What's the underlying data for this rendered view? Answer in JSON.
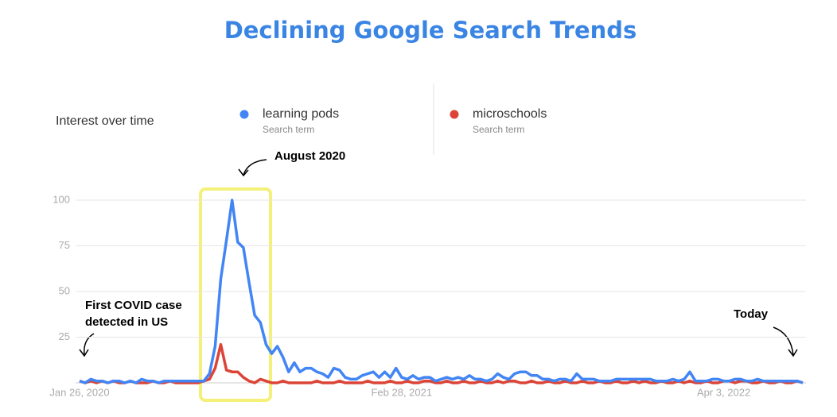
{
  "chart_data": {
    "type": "line",
    "title": "Declining Google Search Trends",
    "panel_title": "Interest over time",
    "categories": [
      "Jan 26, 2020",
      null,
      null,
      null,
      null,
      null,
      null,
      null,
      null,
      null,
      null,
      null,
      null,
      null,
      null,
      null,
      null,
      null,
      null,
      null,
      null,
      null,
      null,
      null,
      null,
      null,
      null,
      null,
      null,
      null,
      null,
      null,
      null,
      null,
      null,
      null,
      null,
      null,
      null,
      null,
      null,
      null,
      null,
      null,
      null,
      null,
      null,
      null,
      null,
      null,
      null,
      null,
      null,
      null,
      null,
      null,
      null,
      "Feb 28, 2021",
      null,
      null,
      null,
      null,
      null,
      null,
      null,
      null,
      null,
      null,
      null,
      null,
      null,
      null,
      null,
      null,
      null,
      null,
      null,
      null,
      null,
      null,
      null,
      null,
      null,
      null,
      null,
      null,
      null,
      null,
      null,
      null,
      null,
      null,
      null,
      null,
      null,
      null,
      null,
      null,
      null,
      null,
      null,
      null,
      null,
      null,
      null,
      null,
      null,
      null,
      null,
      null,
      null,
      null,
      null,
      null,
      "Apr 3, 2022",
      null,
      null,
      null,
      null,
      null,
      null,
      null,
      null,
      null,
      null,
      null,
      null,
      null,
      null
    ],
    "series": [
      {
        "name": "learning pods",
        "subtitle": "Search term",
        "color": "#4285f4",
        "values": [
          1,
          0,
          2,
          1,
          1,
          0,
          1,
          1,
          0,
          1,
          0,
          2,
          1,
          1,
          0,
          1,
          1,
          1,
          1,
          1,
          1,
          1,
          1,
          5,
          20,
          57,
          78,
          100,
          77,
          74,
          55,
          37,
          33,
          21,
          16,
          20,
          14,
          6,
          11,
          6,
          8,
          8,
          6,
          5,
          3,
          8,
          7,
          3,
          2,
          2,
          4,
          5,
          6,
          3,
          6,
          3,
          8,
          3,
          2,
          4,
          2,
          3,
          3,
          1,
          2,
          3,
          2,
          3,
          2,
          4,
          2,
          2,
          1,
          2,
          5,
          3,
          2,
          5,
          6,
          6,
          4,
          4,
          2,
          2,
          1,
          2,
          2,
          1,
          5,
          2,
          2,
          2,
          1,
          1,
          1,
          2,
          2,
          2,
          2,
          2,
          2,
          2,
          1,
          1,
          1,
          2,
          1,
          2,
          6,
          1,
          1,
          1,
          2,
          2,
          1,
          1,
          2,
          2,
          1,
          1,
          2,
          1,
          1,
          1,
          1,
          1,
          1,
          1,
          0
        ]
      },
      {
        "name": "microschools",
        "subtitle": "Search term",
        "color": "#db4437",
        "values": [
          1,
          0,
          1,
          0,
          1,
          0,
          1,
          0,
          0,
          1,
          0,
          0,
          0,
          1,
          0,
          0,
          1,
          0,
          0,
          0,
          0,
          0,
          1,
          2,
          8,
          21,
          7,
          6,
          6,
          3,
          1,
          0,
          2,
          1,
          0,
          0,
          1,
          0,
          0,
          0,
          0,
          0,
          1,
          0,
          0,
          0,
          1,
          0,
          0,
          0,
          0,
          1,
          0,
          0,
          0,
          1,
          0,
          0,
          1,
          0,
          0,
          1,
          1,
          0,
          0,
          1,
          0,
          0,
          1,
          0,
          0,
          1,
          0,
          0,
          1,
          0,
          1,
          1,
          0,
          0,
          1,
          0,
          0,
          1,
          0,
          0,
          1,
          0,
          0,
          1,
          0,
          0,
          1,
          0,
          0,
          1,
          0,
          0,
          1,
          0,
          1,
          0,
          0,
          1,
          0,
          0,
          1,
          0,
          1,
          0,
          0,
          1,
          0,
          0,
          1,
          1,
          0,
          1,
          1,
          0,
          0,
          1,
          0,
          0,
          1,
          0,
          0,
          1,
          0
        ]
      }
    ],
    "ylim": [
      0,
      100
    ],
    "yticks": [
      25,
      50,
      75,
      100
    ],
    "grid": true,
    "annotations": [
      [
        "August 2020"
      ],
      [
        "First COVID case",
        "detected in US"
      ],
      [
        "Today"
      ]
    ]
  }
}
